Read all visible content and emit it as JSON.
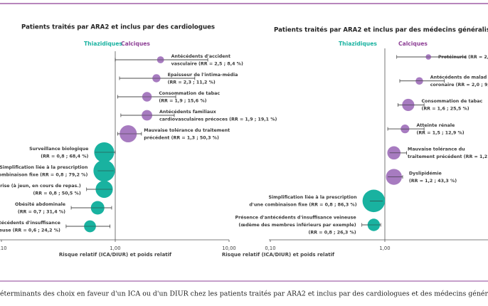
{
  "chart_data": [
    {
      "type": "forest",
      "title": "Patients traités par ARA2 et inclus par des cardiologues",
      "x_label": "Risque relatif (ICA/DIUR) et poids relatif",
      "log_x": true,
      "xlim": [
        0.1,
        10
      ],
      "xticks": [
        {
          "value": 0.1,
          "label": "0,10"
        },
        {
          "value": 1,
          "label": "1,00"
        },
        {
          "value": 10,
          "label": "10,00"
        }
      ],
      "series": [
        {
          "name": "Calciques",
          "color": "#a77bc0",
          "header_color": "#8d3f95",
          "labels": [
            [
              "Antécédents d'accident",
              "vasculaire (RR = 2,5 ; 8,4 %)"
            ],
            [
              "Epaisseur de l'intima-média",
              "(RR = 2,3 ; 11,2 %)"
            ],
            [
              "Consommation de tabac",
              "(RR = 1,9 ; 15,6 %)"
            ],
            [
              "Antécédents familiaux",
              "cardiovasculaires précoces (RR = 1,9 ; 19,1 %)"
            ],
            [
              "Mauvaise tolérance du traitement",
              "précédent (RR = 1,3 ; 50,3 %)"
            ]
          ],
          "values": [
            2.5,
            2.3,
            1.9,
            1.9,
            1.3
          ],
          "sizes": [
            8.4,
            11.2,
            15.6,
            19.1,
            50.3
          ],
          "ci_low": [
            1.0,
            1.09,
            1.05,
            1.12,
            1.05
          ],
          "ci_high": [
            6.5,
            5.0,
            3.4,
            3.3,
            1.7
          ]
        },
        {
          "name": "Thiazidiques",
          "color": "#19b2a0",
          "header_color": "#19b2a0",
          "labels": [
            [
              "Surveillance biologique",
              "(RR = 0,8 ; 68,4 %)"
            ],
            [
              "Simplification liée à la prescription",
              "d'une combinaison fixe (RR = 0,8 ; 79,2 %)"
            ],
            [
              "s de prise (à jeun, en cours de repas.)",
              "(RR = 0,8 ; 50,5 %)"
            ],
            [
              "Obésité abdominale",
              "(RR = 0,7 ; 31,4 %)"
            ],
            [
              "d'antécédents d'insuffisance",
              "veineuse (RR = 0,6 ; 24,2 %)"
            ]
          ],
          "values": [
            0.8,
            0.8,
            0.8,
            0.7,
            0.6
          ],
          "sizes": [
            68.4,
            79.2,
            50.5,
            31.4,
            24.2
          ],
          "ci_low": [
            0.66,
            0.7,
            0.56,
            0.41,
            0.37
          ],
          "ci_high": [
            1.0,
            0.97,
            0.94,
            0.93,
            0.9
          ]
        }
      ]
    },
    {
      "type": "forest",
      "title": "Patients traités par ARA2 et inclus par des médecins généralistes",
      "x_label": "Risque relatif (ICA/DIUR) et poids relatif",
      "log_x": true,
      "xlim": [
        0.1,
        10
      ],
      "xticks": [
        {
          "value": 0.1,
          "label": "0,10"
        },
        {
          "value": 1,
          "label": "1,00"
        }
      ],
      "series": [
        {
          "name": "Calciques",
          "color": "#a77bc0",
          "header_color": "#8d3f95",
          "labels": [
            [
              "Protéinurie (RR = 2,4"
            ],
            [
              "Antécédents de malad",
              "coronaire (RR = 2,0 ; 9,6"
            ],
            [
              "Consommation de tabac",
              "(RR = 1,6 ; 25,5 %)"
            ],
            [
              "Atteinte rénale",
              "(RR = 1,5 ; 12,9 %)"
            ],
            [
              "Mauvaise tolérance du",
              "traitement précédent (RR = 1,2 ; 3"
            ],
            [
              "Dyslipidémie",
              "(RR = 1,2 ; 43,3 %)"
            ]
          ],
          "values": [
            2.4,
            2.0,
            1.6,
            1.5,
            1.2,
            1.2
          ],
          "sizes": [
            5,
            9.6,
            25.5,
            12.9,
            30,
            43.3
          ],
          "ci_low": [
            1.27,
            1.35,
            1.3,
            1.06,
            1.1,
            1.06
          ],
          "ci_high": [
            5.1,
            3.3,
            2.2,
            2.2,
            1.55,
            1.43
          ]
        },
        {
          "name": "Thiazidiques",
          "color": "#19b2a0",
          "header_color": "#19b2a0",
          "labels": [
            [
              "Simplification liée à la prescription",
              "d'une combinaison fixe (RR = 0,8 ; 86,3 %)"
            ],
            [
              "Présence d'antécédents d'insuffisance veineuse",
              "(œdème des membres inférieurs par exemple)",
              "(RR = 0,8 ; 26,3 %)"
            ]
          ],
          "values": [
            0.8,
            0.8
          ],
          "sizes": [
            86.3,
            26.3
          ],
          "ci_low": [
            0.74,
            0.63
          ],
          "ci_high": [
            0.96,
            0.92
          ]
        }
      ]
    }
  ],
  "caption": "éterminants des choix en faveur d'un ICA ou d'un DIUR chez les patients traités par ARA2 et inclus par des cardiologues et des médecins génér"
}
